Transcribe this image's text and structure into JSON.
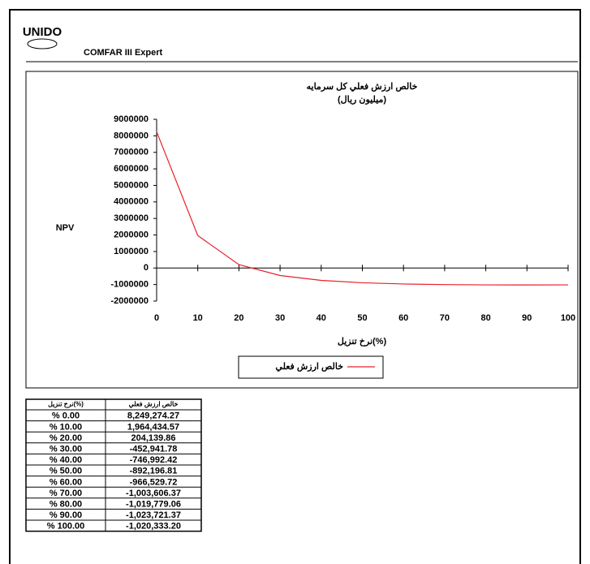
{
  "header": {
    "logo": "UNIDO",
    "product": "COMFAR III Expert"
  },
  "chart_data": {
    "type": "line",
    "title": [
      "خالص ارزش فعلي كل سرمايه",
      "(ميليون ريال)"
    ],
    "y_label": "NPV",
    "x_label": "نرخ تنزيل(%)",
    "x": [
      0,
      10,
      20,
      30,
      40,
      50,
      60,
      70,
      80,
      90,
      100
    ],
    "series": [
      {
        "name": "خالص ارزش فعلي",
        "color": "#e8202a",
        "values": [
          8249274.27,
          1964434.57,
          204139.86,
          -452941.78,
          -746992.42,
          -892196.81,
          -966529.72,
          -1003606.37,
          -1019779.06,
          -1023721.37,
          -1020333.2
        ]
      }
    ],
    "xlim": [
      0,
      100
    ],
    "xticks": [
      0,
      10,
      20,
      30,
      40,
      50,
      60,
      70,
      80,
      90,
      100
    ],
    "ylim": [
      -2000000,
      9000000
    ],
    "yticks": [
      -2000000,
      -1000000,
      0,
      1000000,
      2000000,
      3000000,
      4000000,
      5000000,
      6000000,
      7000000,
      8000000,
      9000000
    ]
  },
  "table": {
    "header": [
      "نرخ تنزيل(%)",
      "خالص ارزش فعلي"
    ],
    "rows": [
      [
        "% 0.00",
        "8,249,274.27"
      ],
      [
        "% 10.00",
        "1,964,434.57"
      ],
      [
        "% 20.00",
        "204,139.86"
      ],
      [
        "% 30.00",
        "-452,941.78"
      ],
      [
        "% 40.00",
        "-746,992.42"
      ],
      [
        "% 50.00",
        "-892,196.81"
      ],
      [
        "% 60.00",
        "-966,529.72"
      ],
      [
        "% 70.00",
        "-1,003,606.37"
      ],
      [
        "% 80.00",
        "-1,019,779.06"
      ],
      [
        "% 90.00",
        "-1,023,721.37"
      ],
      [
        "% 100.00",
        "-1,020,333.20"
      ]
    ]
  }
}
